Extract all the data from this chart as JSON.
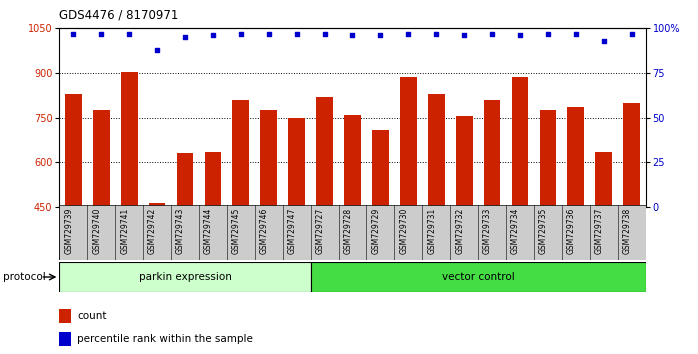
{
  "title": "GDS4476 / 8170971",
  "samples": [
    "GSM729739",
    "GSM729740",
    "GSM729741",
    "GSM729742",
    "GSM729743",
    "GSM729744",
    "GSM729745",
    "GSM729746",
    "GSM729747",
    "GSM729727",
    "GSM729728",
    "GSM729729",
    "GSM729730",
    "GSM729731",
    "GSM729732",
    "GSM729733",
    "GSM729734",
    "GSM729735",
    "GSM729736",
    "GSM729737",
    "GSM729738"
  ],
  "counts": [
    830,
    775,
    905,
    465,
    630,
    635,
    810,
    775,
    750,
    820,
    760,
    710,
    885,
    830,
    755,
    810,
    885,
    775,
    785,
    635,
    800
  ],
  "percentile": [
    97,
    97,
    97,
    88,
    95,
    96,
    97,
    97,
    97,
    97,
    96,
    96,
    97,
    97,
    96,
    97,
    96,
    97,
    97,
    93,
    97
  ],
  "ylim_left": [
    450,
    1050
  ],
  "ylim_right": [
    0,
    100
  ],
  "yticks_left": [
    450,
    600,
    750,
    900,
    1050
  ],
  "yticks_right": [
    0,
    25,
    50,
    75,
    100
  ],
  "ytick_labels_right": [
    "0",
    "25",
    "50",
    "75",
    "100%"
  ],
  "bar_color": "#cc2200",
  "dot_color": "#0000cc",
  "grid_color": "#000000",
  "parkin_color": "#ccffcc",
  "vector_color": "#44dd44",
  "xlabel_bg": "#cccccc",
  "protocol_label": "protocol",
  "parkin_label": "parkin expression",
  "vector_label": "vector control",
  "legend_count": "count",
  "legend_pct": "percentile rank within the sample",
  "bar_width": 0.6,
  "left_ylabel_color": "#cc2200",
  "right_ylabel_color": "#0000cc",
  "n_parkin": 9,
  "n_vector": 12
}
